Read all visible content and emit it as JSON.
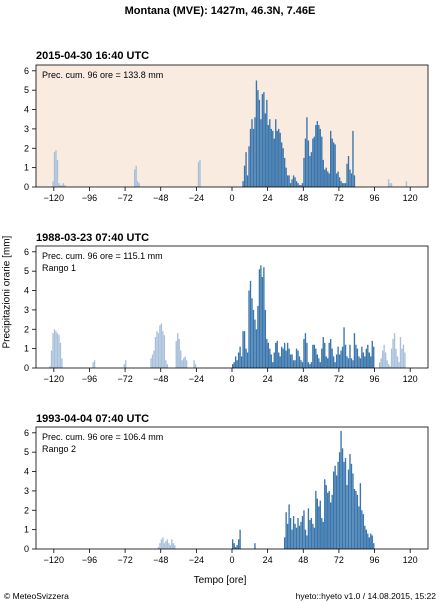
{
  "title": "Montana (MVE): 1427m, 46.3N, 7.46E",
  "ylabel": "Precipitazioni orarie [mm]",
  "xlabel": "Tempo [ore]",
  "footer_left": "© MeteoSvizzera",
  "footer_right": "hyeto::hyeto v1.0 / 14.08.2015, 15:22",
  "colors": {
    "dark": "#3a76ad",
    "light": "#a9c0db",
    "highlight_bg": "#f9ebe0"
  },
  "chart_data": [
    {
      "type": "bar",
      "title": "2015-04-30 16:40 UTC",
      "annotations": [
        "Prec. cum. 96 ore = 133.8 mm"
      ],
      "highlight": true,
      "xlim": [
        -132,
        132
      ],
      "ylim": [
        0,
        6.3
      ],
      "xticks": [
        -120,
        -96,
        -72,
        -48,
        -24,
        0,
        24,
        48,
        72,
        96,
        120
      ],
      "yticks": [
        0,
        1,
        2,
        3,
        4,
        5,
        6
      ],
      "light_x": [
        -121,
        -120,
        -119,
        -118,
        -117,
        -116,
        -115,
        -114,
        -113,
        -66,
        -65,
        -64,
        -63,
        -23,
        -22,
        105,
        106,
        107,
        117
      ],
      "light_y": [
        0.3,
        1.8,
        1.9,
        1.4,
        0.2,
        0.1,
        0.1,
        0.2,
        0.1,
        0.9,
        1.1,
        0.3,
        0.2,
        1.3,
        1.4,
        0.4,
        0.2,
        0.2,
        0.3
      ],
      "dark_x": [
        7,
        8,
        9,
        10,
        11,
        12,
        13,
        14,
        15,
        16,
        17,
        18,
        19,
        20,
        21,
        22,
        23,
        24,
        25,
        26,
        27,
        28,
        29,
        30,
        31,
        32,
        33,
        34,
        35,
        36,
        37,
        38,
        39,
        40,
        41,
        42,
        43,
        44,
        45,
        46,
        47,
        48,
        49,
        50,
        51,
        52,
        53,
        54,
        55,
        56,
        57,
        58,
        59,
        60,
        61,
        62,
        63,
        64,
        65,
        66,
        67,
        68,
        69,
        70,
        71,
        72,
        73,
        74,
        75,
        76,
        77,
        78,
        79,
        80,
        81,
        82
      ],
      "dark_y": [
        0.3,
        1.1,
        1.8,
        0.6,
        2.1,
        3.0,
        3.5,
        3.0,
        3.6,
        5.5,
        5.0,
        4.5,
        3.5,
        4.8,
        4.9,
        3.8,
        4.5,
        3.2,
        3.5,
        3.0,
        2.9,
        2.5,
        3.5,
        2.9,
        3.0,
        2.8,
        2.3,
        2.0,
        1.5,
        1.0,
        0.6,
        0.6,
        0.2,
        0.4,
        0.6,
        0.5,
        0.3,
        0.2,
        0.1,
        0.1,
        0.2,
        1.5,
        2.5,
        3.6,
        2.4,
        1.6,
        1.8,
        2.5,
        2.6,
        3.2,
        3.4,
        3.2,
        3.0,
        2.6,
        1.4,
        0.9,
        1.0,
        0.8,
        0.7,
        2.9,
        2.5,
        2.3,
        2.2,
        0.7,
        0.8,
        0.5,
        0.3,
        0.2,
        0.2,
        0.2,
        1.2,
        1.6,
        0.9,
        0.7,
        2.9,
        0.6
      ]
    },
    {
      "type": "bar",
      "title": "1988-03-23 07:40 UTC",
      "annotations": [
        "Prec. cum. 96 ore = 115.1 mm",
        "Rango 1"
      ],
      "highlight": false,
      "xlim": [
        -132,
        132
      ],
      "ylim": [
        0,
        6.3
      ],
      "xticks": [
        -120,
        -96,
        -72,
        -48,
        -24,
        0,
        24,
        48,
        72,
        96,
        120
      ],
      "yticks": [
        0,
        1,
        2,
        3,
        4,
        5,
        6
      ],
      "light_x": [
        -123,
        -122,
        -121,
        -120,
        -119,
        -118,
        -117,
        -116,
        -115,
        -94,
        -93,
        -73,
        -72,
        -55,
        -54,
        -53,
        -52,
        -51,
        -50,
        -49,
        -48,
        -47,
        -46,
        -45,
        -44,
        -38,
        -37,
        -36,
        -35,
        -34,
        -33,
        -32,
        -31,
        -26,
        -25,
        99,
        100,
        101,
        102,
        103,
        104,
        105,
        106,
        107,
        108,
        109,
        110,
        111,
        112,
        113,
        114,
        115,
        116
      ],
      "light_y": [
        0.1,
        0.9,
        1.8,
        2.0,
        1.9,
        1.8,
        1.7,
        1.3,
        0.5,
        0.3,
        0.4,
        0.2,
        0.4,
        0.5,
        0.7,
        0.9,
        1.6,
        1.9,
        1.8,
        2.2,
        2.3,
        1.9,
        1.7,
        0.4,
        0.2,
        1.4,
        1.8,
        1.5,
        0.9,
        0.4,
        0.5,
        0.6,
        0.4,
        0.4,
        0.2,
        0.3,
        0.5,
        0.9,
        1.2,
        0.8,
        0.4,
        0.2,
        0.1,
        1.0,
        1.5,
        1.8,
        1.0,
        0.6,
        0.3,
        1.6,
        1.0,
        1.2,
        0.8
      ],
      "dark_x": [
        0,
        1,
        2,
        3,
        4,
        5,
        6,
        7,
        8,
        9,
        10,
        11,
        12,
        13,
        14,
        15,
        16,
        17,
        18,
        19,
        20,
        21,
        22,
        23,
        24,
        25,
        26,
        27,
        28,
        29,
        30,
        31,
        32,
        33,
        34,
        35,
        36,
        37,
        38,
        39,
        40,
        41,
        42,
        43,
        44,
        45,
        46,
        47,
        48,
        49,
        50,
        51,
        52,
        53,
        54,
        55,
        56,
        57,
        58,
        59,
        60,
        61,
        62,
        63,
        64,
        65,
        66,
        67,
        68,
        69,
        70,
        71,
        72,
        73,
        74,
        75,
        76,
        77,
        78,
        79,
        80,
        81,
        82,
        83,
        84,
        85,
        86,
        87,
        88,
        89,
        90,
        91,
        92,
        93,
        94,
        95
      ],
      "dark_y": [
        0.2,
        0.3,
        0.6,
        0.4,
        0.8,
        1.1,
        0.6,
        1.9,
        1.9,
        1.0,
        0.8,
        4.0,
        4.5,
        3.6,
        3.0,
        2.5,
        2.0,
        3.2,
        5.1,
        5.3,
        4.7,
        5.2,
        3.0,
        1.5,
        1.3,
        1.0,
        0.7,
        0.3,
        0.8,
        1.3,
        1.4,
        0.8,
        0.6,
        1.1,
        1.0,
        1.3,
        0.9,
        1.3,
        1.0,
        0.7,
        0.7,
        0.4,
        0.4,
        1.0,
        0.9,
        0.6,
        0.4,
        0.3,
        1.5,
        1.8,
        1.3,
        0.3,
        0.2,
        0.3,
        1.2,
        1.2,
        1.0,
        0.7,
        0.5,
        0.3,
        1.0,
        1.6,
        1.3,
        0.6,
        0.5,
        1.3,
        1.5,
        1.0,
        0.6,
        0.3,
        0.7,
        1.1,
        0.7,
        0.9,
        1.1,
        2.1,
        1.2,
        0.6,
        0.5,
        1.2,
        0.5,
        0.4,
        1.8,
        1.2,
        1.0,
        0.6,
        0.5,
        1.1,
        0.8,
        0.6,
        1.0,
        1.2,
        0.8,
        0.6,
        1.4,
        1.1
      ]
    },
    {
      "type": "bar",
      "title": "1993-04-04 07:40 UTC",
      "annotations": [
        "Prec. cum. 96 ore = 106.4 mm",
        "Rango 2"
      ],
      "highlight": false,
      "xlim": [
        -132,
        132
      ],
      "ylim": [
        0,
        6.3
      ],
      "xticks": [
        -120,
        -96,
        -72,
        -48,
        -24,
        0,
        24,
        48,
        72,
        96,
        120
      ],
      "yticks": [
        0,
        1,
        2,
        3,
        4,
        5,
        6
      ],
      "light_x": [
        -50,
        -49,
        -48,
        -47,
        -46,
        -45,
        -44,
        -43,
        -42,
        -41,
        -40,
        -39
      ],
      "light_y": [
        0.1,
        0.3,
        0.5,
        0.6,
        0.3,
        0.4,
        0.5,
        0.3,
        0.2,
        0.5,
        0.3,
        0.2
      ],
      "dark_x": [
        0,
        1,
        2,
        3,
        4,
        5,
        6,
        7,
        8,
        9,
        10,
        11,
        12,
        13,
        14,
        15,
        16,
        17,
        18,
        19,
        20,
        21,
        22,
        23,
        24,
        25,
        26,
        27,
        28,
        29,
        30,
        31,
        32,
        33,
        34,
        35,
        36,
        37,
        38,
        39,
        40,
        41,
        42,
        43,
        44,
        45,
        46,
        47,
        48,
        49,
        50,
        51,
        52,
        53,
        54,
        55,
        56,
        57,
        58,
        59,
        60,
        61,
        62,
        63,
        64,
        65,
        66,
        67,
        68,
        69,
        70,
        71,
        72,
        73,
        74,
        75,
        76,
        77,
        78,
        79,
        80,
        81,
        82,
        83,
        84,
        85,
        86,
        87,
        88,
        89,
        90,
        91,
        92,
        93,
        94,
        95
      ],
      "dark_y": [
        0.5,
        0.3,
        0.1,
        0.2,
        0.5,
        1.0,
        0,
        0,
        0,
        0,
        0,
        0,
        0,
        0,
        0,
        0.3,
        0,
        0,
        0,
        0,
        0,
        0,
        0,
        0,
        0,
        0,
        0,
        0,
        0,
        0,
        0,
        0,
        0,
        0,
        0,
        0.6,
        1.9,
        1.3,
        2.3,
        1.6,
        1.0,
        1.7,
        1.3,
        1.1,
        1.6,
        1.2,
        1.4,
        1.7,
        2.0,
        1.0,
        0.7,
        2.1,
        1.5,
        1.6,
        1.3,
        1.1,
        3.0,
        2.6,
        2.2,
        2.5,
        1.6,
        1.4,
        3.6,
        3.3,
        2.9,
        3.0,
        2.4,
        2.8,
        4.0,
        4.3,
        3.8,
        4.5,
        5.0,
        6.1,
        5.2,
        4.5,
        4.7,
        3.3,
        4.1,
        4.9,
        4.4,
        3.9,
        3.1,
        3.0,
        2.8,
        2.2,
        3.4,
        2.0,
        1.8,
        1.2,
        1.0,
        0.8,
        0.6,
        0.8,
        0.7,
        0.3
      ]
    }
  ]
}
